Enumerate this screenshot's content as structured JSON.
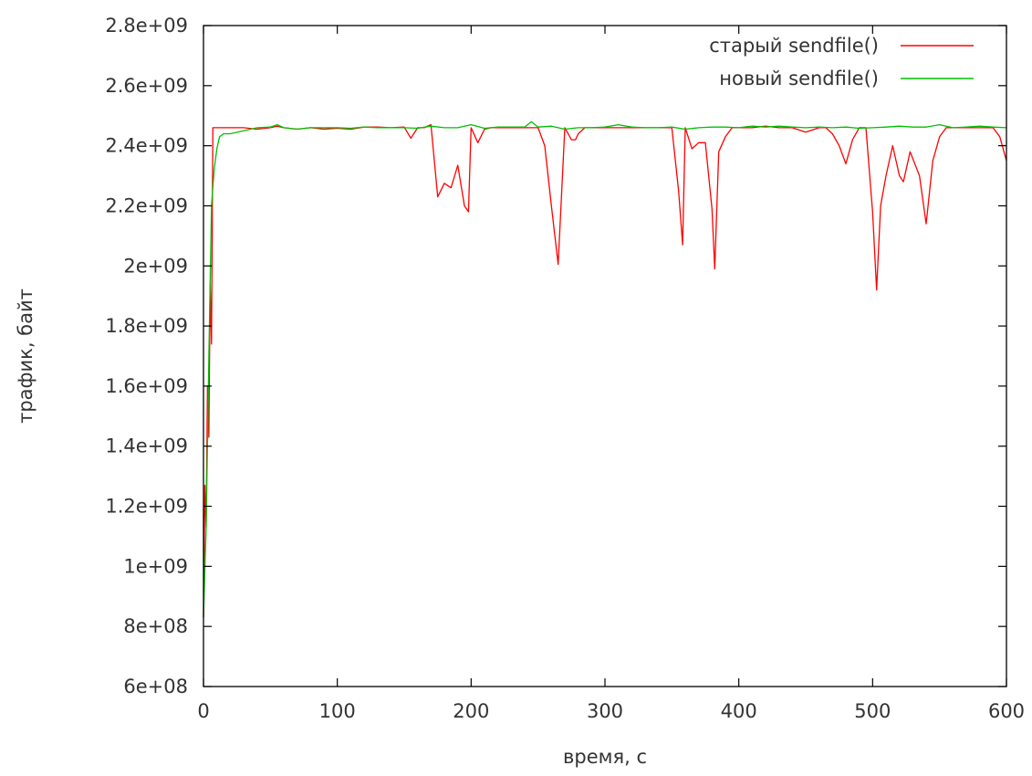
{
  "chart_data": {
    "type": "line",
    "title": "",
    "xlabel": "время, с",
    "ylabel": "трафик, байт",
    "xlim": [
      0,
      600
    ],
    "ylim": [
      600000000,
      2800000000
    ],
    "grid": false,
    "legend_position": "top-right",
    "x_ticks": [
      "0",
      "100",
      "200",
      "300",
      "400",
      "500",
      "600"
    ],
    "y_ticks": [
      "6e+08",
      "8e+08",
      "1e+09",
      "1.2e+09",
      "1.4e+09",
      "1.6e+09",
      "1.8e+09",
      "2e+09",
      "2.2e+09",
      "2.4e+09",
      "2.6e+09",
      "2.8e+09"
    ],
    "series": [
      {
        "name": "старый sendfile()",
        "color": "#ff0000",
        "x": [
          0,
          1,
          2,
          3,
          4,
          5,
          6,
          7,
          8,
          10,
          15,
          20,
          30,
          40,
          50,
          55,
          60,
          70,
          80,
          90,
          100,
          110,
          120,
          130,
          140,
          150,
          155,
          160,
          165,
          170,
          175,
          180,
          185,
          190,
          195,
          198,
          200,
          205,
          210,
          215,
          220,
          230,
          240,
          250,
          255,
          260,
          265,
          270,
          275,
          278,
          280,
          285,
          290,
          300,
          310,
          320,
          330,
          340,
          350,
          355,
          358,
          360,
          365,
          370,
          375,
          380,
          382,
          385,
          390,
          395,
          400,
          410,
          420,
          430,
          440,
          450,
          460,
          465,
          470,
          475,
          480,
          485,
          490,
          495,
          500,
          503,
          506,
          510,
          515,
          520,
          523,
          528,
          535,
          540,
          545,
          550,
          555,
          560,
          570,
          580,
          590,
          595,
          600
        ],
        "y": [
          830000000,
          1270000000,
          1130000000,
          1600000000,
          1430000000,
          1940000000,
          1740000000,
          2460000000,
          2460000000,
          2460000000,
          2460000000,
          2460000000,
          2460000000,
          2455000000,
          2460000000,
          2465000000,
          2460000000,
          2455000000,
          2460000000,
          2455000000,
          2458000000,
          2455000000,
          2462000000,
          2462000000,
          2460000000,
          2462000000,
          2425000000,
          2460000000,
          2460000000,
          2470000000,
          2230000000,
          2275000000,
          2260000000,
          2335000000,
          2200000000,
          2180000000,
          2460000000,
          2410000000,
          2455000000,
          2460000000,
          2460000000,
          2460000000,
          2460000000,
          2460000000,
          2400000000,
          2200000000,
          2005000000,
          2460000000,
          2420000000,
          2420000000,
          2440000000,
          2460000000,
          2460000000,
          2460000000,
          2460000000,
          2460000000,
          2460000000,
          2460000000,
          2460000000,
          2250000000,
          2070000000,
          2460000000,
          2390000000,
          2410000000,
          2410000000,
          2190000000,
          1990000000,
          2380000000,
          2430000000,
          2460000000,
          2460000000,
          2460000000,
          2465000000,
          2460000000,
          2460000000,
          2445000000,
          2460000000,
          2460000000,
          2440000000,
          2400000000,
          2340000000,
          2420000000,
          2460000000,
          2460000000,
          2180000000,
          1920000000,
          2200000000,
          2300000000,
          2400000000,
          2300000000,
          2280000000,
          2380000000,
          2300000000,
          2140000000,
          2350000000,
          2430000000,
          2460000000,
          2460000000,
          2460000000,
          2460000000,
          2460000000,
          2430000000,
          2350000000
        ]
      },
      {
        "name": "новый sendfile()",
        "color": "#00c000",
        "x": [
          0,
          2,
          4,
          6,
          8,
          10,
          12,
          15,
          20,
          30,
          40,
          50,
          55,
          60,
          70,
          80,
          90,
          100,
          110,
          120,
          130,
          140,
          150,
          160,
          170,
          180,
          190,
          200,
          210,
          220,
          230,
          240,
          245,
          250,
          260,
          270,
          280,
          290,
          300,
          310,
          320,
          330,
          340,
          350,
          360,
          370,
          380,
          390,
          400,
          410,
          420,
          430,
          440,
          450,
          460,
          470,
          480,
          490,
          500,
          510,
          520,
          530,
          540,
          550,
          560,
          570,
          580,
          590,
          600
        ],
        "y": [
          830000000,
          1130000000,
          1700000000,
          2200000000,
          2320000000,
          2390000000,
          2430000000,
          2440000000,
          2440000000,
          2450000000,
          2460000000,
          2462000000,
          2470000000,
          2460000000,
          2455000000,
          2460000000,
          2460000000,
          2460000000,
          2458000000,
          2462000000,
          2460000000,
          2460000000,
          2460000000,
          2458000000,
          2465000000,
          2460000000,
          2460000000,
          2470000000,
          2458000000,
          2462000000,
          2462000000,
          2462000000,
          2480000000,
          2462000000,
          2465000000,
          2455000000,
          2460000000,
          2460000000,
          2462000000,
          2470000000,
          2462000000,
          2460000000,
          2460000000,
          2462000000,
          2455000000,
          2460000000,
          2462000000,
          2462000000,
          2460000000,
          2465000000,
          2462000000,
          2465000000,
          2462000000,
          2460000000,
          2462000000,
          2460000000,
          2462000000,
          2458000000,
          2460000000,
          2462000000,
          2465000000,
          2462000000,
          2462000000,
          2470000000,
          2460000000,
          2462000000,
          2465000000,
          2462000000,
          2460000000
        ]
      }
    ]
  }
}
